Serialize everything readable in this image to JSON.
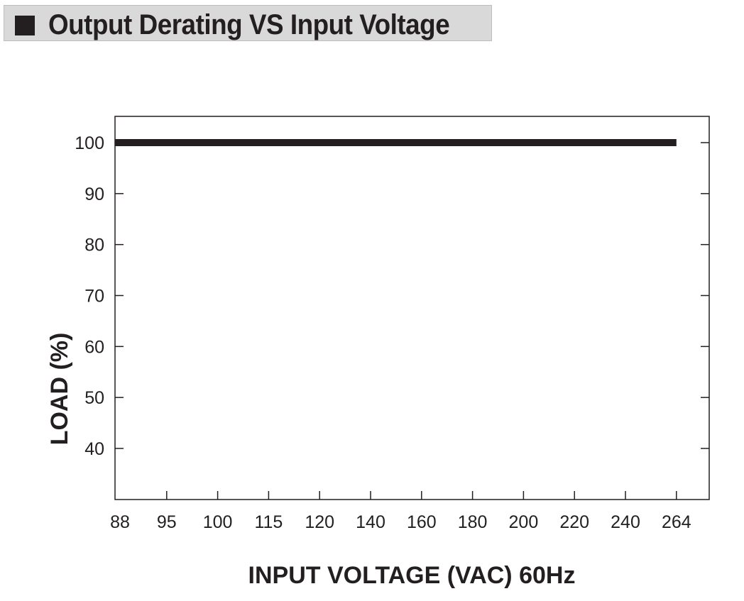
{
  "title": "Output Derating VS Input Voltage",
  "chart_data": {
    "type": "line",
    "title": "Output Derating VS Input Voltage",
    "xlabel": "INPUT VOLTAGE (VAC) 60Hz",
    "ylabel": "LOAD (%)",
    "x_categories": [
      "88",
      "95",
      "100",
      "115",
      "120",
      "140",
      "160",
      "180",
      "200",
      "220",
      "240",
      "264"
    ],
    "y_ticks": [
      40,
      50,
      60,
      70,
      80,
      90,
      100
    ],
    "ylim": [
      30,
      105
    ],
    "grid": false,
    "series": [
      {
        "x": [
          "88",
          "264"
        ],
        "values": [
          100,
          100
        ]
      }
    ],
    "colors": {
      "line": "#231f20",
      "axis": "#231f20",
      "title_bar": "#d9d9d9"
    }
  }
}
